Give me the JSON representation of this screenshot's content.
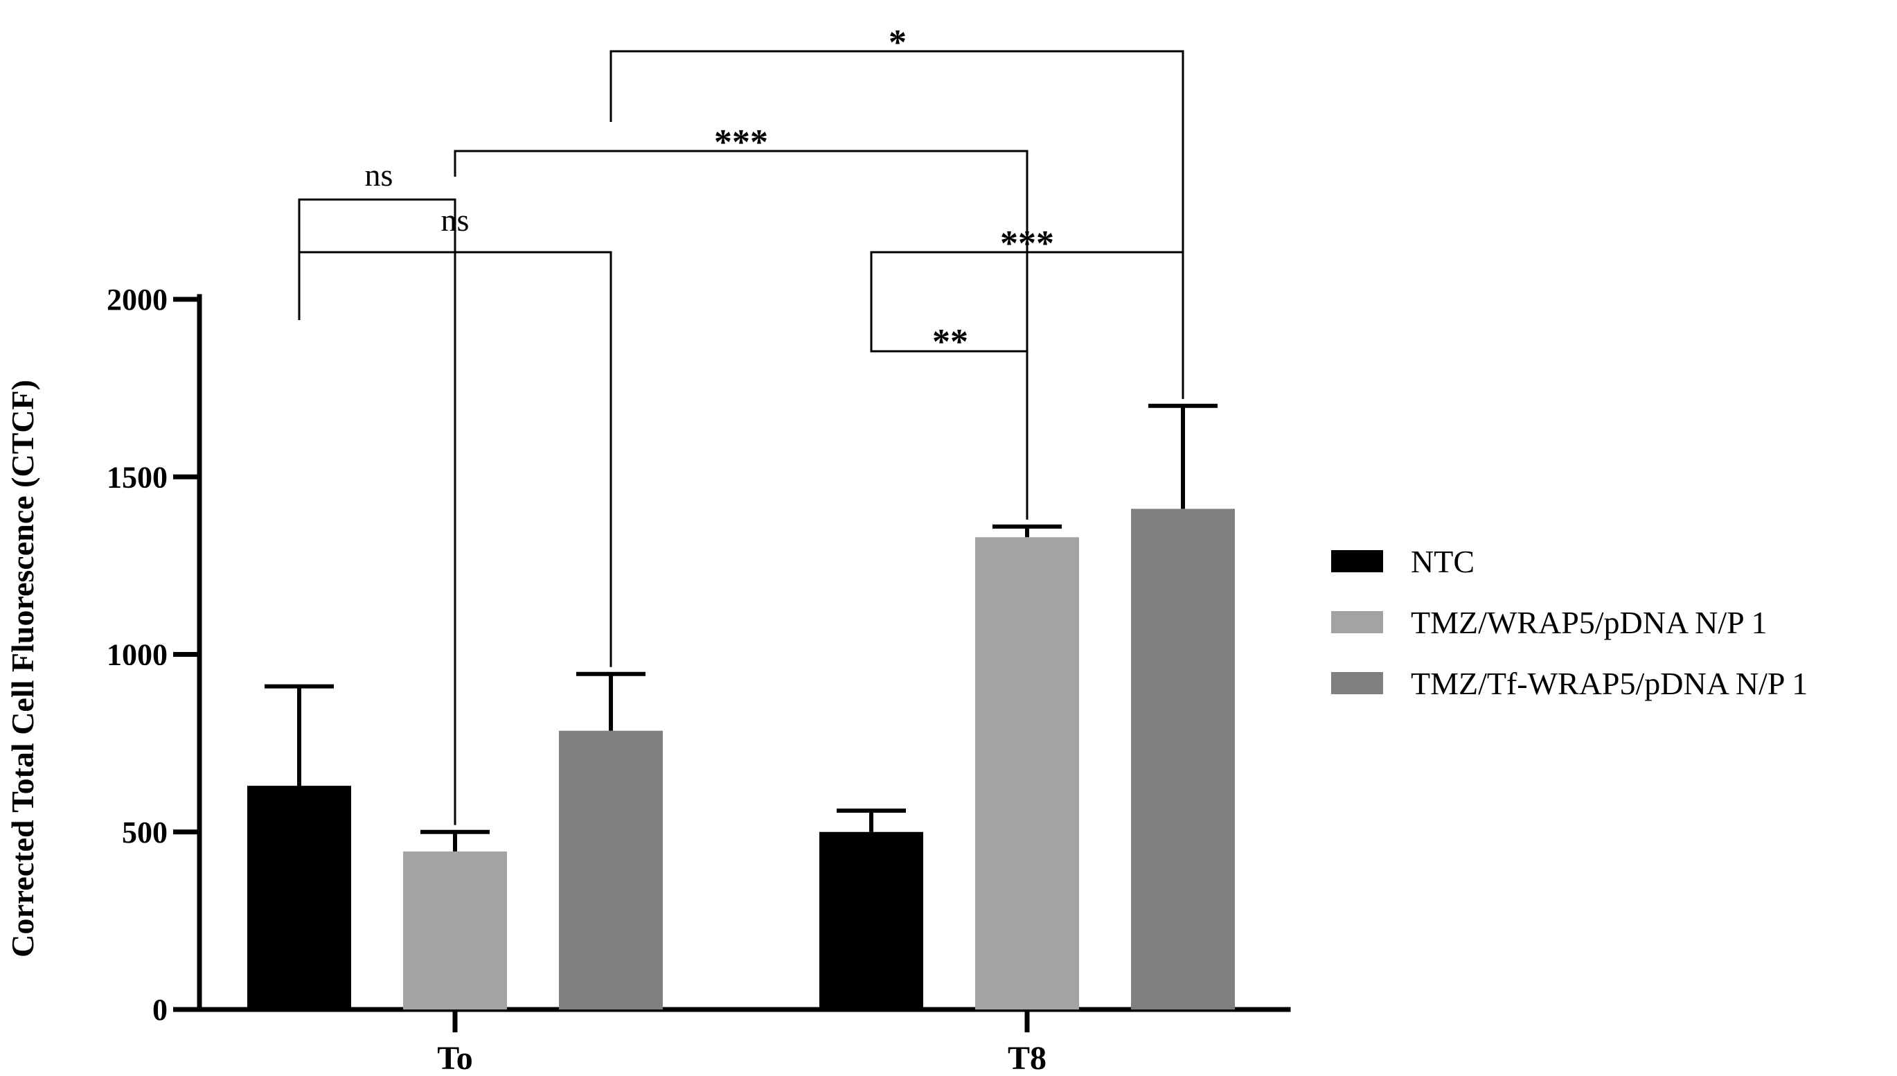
{
  "chart_data": {
    "type": "bar",
    "title": "",
    "xlabel": "",
    "ylabel": "Corrected Total Cell Fluorescence (CTCF)",
    "ylim": [
      0,
      2000
    ],
    "yticks": [
      0,
      500,
      1000,
      1500,
      2000
    ],
    "ytick_labels": [
      "0",
      "500",
      "1000",
      "1500",
      "2000"
    ],
    "categories": [
      "To",
      "T8"
    ],
    "series": [
      {
        "name": "NTC",
        "color": "#000000",
        "values": [
          630,
          500
        ],
        "errors": [
          280,
          60
        ]
      },
      {
        "name": "TMZ/WRAP5/pDNA N/P 1",
        "color": "#a3a3a6",
        "values": [
          445,
          1330
        ],
        "errors": [
          55,
          30
        ]
      },
      {
        "name": "TMZ/Tf-WRAP5/pDNA N/P 1",
        "color": "#808080",
        "values": [
          785,
          1410
        ],
        "errors": [
          160,
          290
        ]
      }
    ],
    "comparisons": [
      {
        "from": [
          0,
          0
        ],
        "to": [
          0,
          1
        ],
        "label": "ns"
      },
      {
        "from": [
          0,
          0
        ],
        "to": [
          0,
          2
        ],
        "label": "ns"
      },
      {
        "from": [
          1,
          0
        ],
        "to": [
          1,
          1
        ],
        "label": "**"
      },
      {
        "from": [
          1,
          0
        ],
        "to": [
          1,
          2
        ],
        "label": "***"
      },
      {
        "from": [
          0,
          1
        ],
        "to": [
          1,
          1
        ],
        "label": "***"
      },
      {
        "from": [
          0,
          2
        ],
        "to": [
          1,
          2
        ],
        "label": "*"
      }
    ],
    "legend": {
      "position": "right",
      "entries": [
        "NTC",
        "TMZ/WRAP5/pDNA N/P 1",
        "TMZ/Tf-WRAP5/pDNA N/P 1"
      ]
    }
  }
}
